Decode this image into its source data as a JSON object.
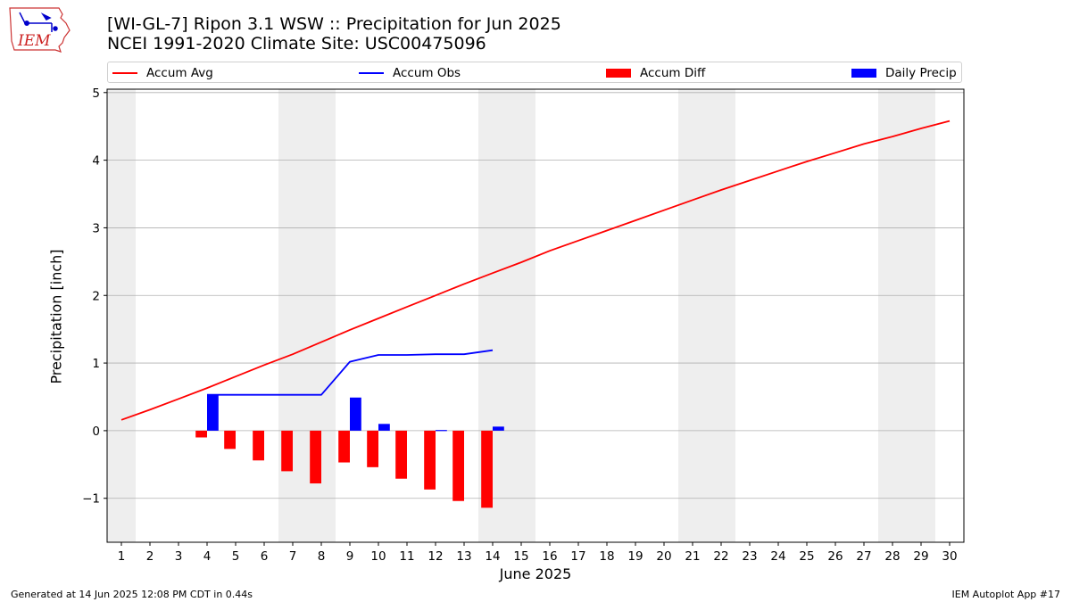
{
  "header": {
    "title_line1": "[WI-GL-7] Ripon 3.1 WSW :: Precipitation for Jun 2025",
    "title_line2": "NCEI 1991-2020 Climate Site: USC00475096",
    "logo_text": "IEM"
  },
  "footer": {
    "generated": "Generated at 14 Jun 2025 12:08 PM CDT in 0.44s",
    "app": "IEM Autoplot App #17"
  },
  "colors": {
    "accum_avg": "#ff0000",
    "accum_obs": "#0000ff",
    "accum_diff": "#ff0000",
    "daily_precip": "#0000ff",
    "weekend_shade": "#eeeeee",
    "grid": "#b0b0b0"
  },
  "chart_data": {
    "type": "line",
    "title": "[WI-GL-7] Ripon 3.1 WSW :: Precipitation for Jun 2025",
    "subtitle": "NCEI 1991-2020 Climate Site: USC00475096",
    "xlabel": "June 2025",
    "ylabel": "Precipitation [inch]",
    "xlim": [
      0.5,
      30.5
    ],
    "ylim": [
      -1.65,
      5.05
    ],
    "yticks": [
      -1,
      0,
      1,
      2,
      3,
      4,
      5
    ],
    "ytick_labels": [
      "−1",
      "0",
      "1",
      "2",
      "3",
      "4",
      "5"
    ],
    "x": [
      1,
      2,
      3,
      4,
      5,
      6,
      7,
      8,
      9,
      10,
      11,
      12,
      13,
      14,
      15,
      16,
      17,
      18,
      19,
      20,
      21,
      22,
      23,
      24,
      25,
      26,
      27,
      28,
      29,
      30
    ],
    "xtick_labels": [
      "1",
      "2",
      "3",
      "4",
      "5",
      "6",
      "7",
      "8",
      "9",
      "10",
      "11",
      "12",
      "13",
      "14",
      "15",
      "16",
      "17",
      "18",
      "19",
      "20",
      "21",
      "22",
      "23",
      "24",
      "25",
      "26",
      "27",
      "28",
      "29",
      "30"
    ],
    "grid": "horizontal",
    "legend_position": "top",
    "weekend_days": [
      1,
      7,
      8,
      14,
      15,
      21,
      22,
      28,
      29
    ],
    "series": [
      {
        "name": "Accum Avg",
        "kind": "line",
        "x": [
          1,
          2,
          3,
          4,
          5,
          6,
          7,
          8,
          9,
          10,
          11,
          12,
          13,
          14,
          15,
          16,
          17,
          18,
          19,
          20,
          21,
          22,
          23,
          24,
          25,
          26,
          27,
          28,
          29,
          30
        ],
        "values": [
          0.16,
          0.31,
          0.47,
          0.63,
          0.8,
          0.97,
          1.13,
          1.31,
          1.49,
          1.66,
          1.83,
          2.0,
          2.17,
          2.33,
          2.49,
          2.66,
          2.81,
          2.96,
          3.11,
          3.26,
          3.41,
          3.56,
          3.7,
          3.84,
          3.98,
          4.11,
          4.24,
          4.35,
          4.47,
          4.58
        ]
      },
      {
        "name": "Accum Obs",
        "kind": "line",
        "x": [
          4,
          5,
          6,
          7,
          8,
          9,
          10,
          11,
          12,
          13,
          14
        ],
        "values": [
          0.53,
          0.53,
          0.53,
          0.53,
          0.53,
          1.02,
          1.12,
          1.12,
          1.13,
          1.13,
          1.19
        ]
      },
      {
        "name": "Accum Diff",
        "kind": "bar",
        "x": [
          4,
          5,
          6,
          7,
          8,
          9,
          10,
          11,
          12,
          13,
          14
        ],
        "values": [
          -0.1,
          -0.27,
          -0.44,
          -0.6,
          -0.78,
          -0.47,
          -0.54,
          -0.71,
          -0.87,
          -1.04,
          -1.14
        ]
      },
      {
        "name": "Daily Precip",
        "kind": "bar",
        "x": [
          4,
          9,
          10,
          12,
          14
        ],
        "values": [
          0.53,
          0.49,
          0.1,
          0.01,
          0.06
        ]
      }
    ]
  }
}
